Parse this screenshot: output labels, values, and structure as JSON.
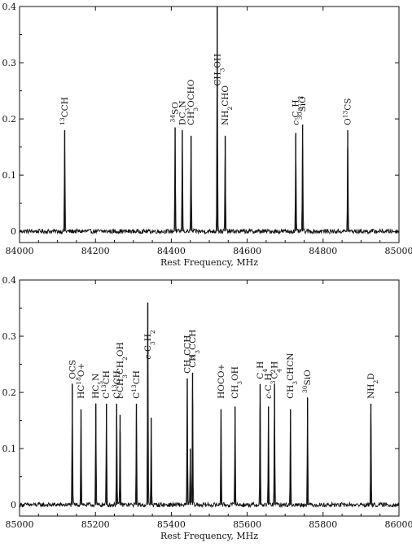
{
  "chart_data": [
    {
      "type": "line",
      "xlabel": "Rest Frequency, MHz",
      "ylabel": "",
      "xlim": [
        84000,
        85000
      ],
      "ylim": [
        -0.02,
        0.4
      ],
      "xticks": [
        "84000",
        "84200",
        "84400",
        "84600",
        "84800",
        "85000"
      ],
      "yticks": [
        "0",
        "0.1",
        "0.2",
        "0.3",
        "0.4"
      ],
      "grid": false,
      "noise_level": 0.004,
      "lines": [
        {
          "label": "<sup>13</sup>CCH",
          "x": 84119,
          "peak": 0.18
        },
        {
          "label": "<sup>34</sup>SO",
          "x": 84410,
          "peak": 0.185
        },
        {
          "label": "DC<sub>3</sub>N",
          "x": 84429,
          "peak": 0.18
        },
        {
          "label": "CH<sub>3</sub>OCHO",
          "x": 84452,
          "peak": 0.17
        },
        {
          "label": "CH<sub>3</sub>OH",
          "x": 84521,
          "peak": 0.4
        },
        {
          "label": "NH<sub>2</sub>CHO",
          "x": 84542,
          "peak": 0.17
        },
        {
          "label": "<i>c</i>-C<sub>3</sub>H<sub>2</sub>",
          "x": 84728,
          "peak": 0.175
        },
        {
          "label": "<sup>30</sup>SiO",
          "x": 84746,
          "peak": 0.19
        },
        {
          "label": "O<sup>13</sup>CS",
          "x": 84865,
          "peak": 0.18
        }
      ]
    },
    {
      "type": "line",
      "xlabel": "Rest Frequency, MHz",
      "ylabel": "",
      "xlim": [
        85000,
        86000
      ],
      "ylim": [
        -0.02,
        0.4
      ],
      "xticks": [
        "85000",
        "85200",
        "85400",
        "85600",
        "85800",
        "86000"
      ],
      "yticks": [
        "0",
        "0.1",
        "0.2",
        "0.3",
        "0.4"
      ],
      "grid": false,
      "noise_level": 0.004,
      "lines": [
        {
          "label": "OCS",
          "x": 85139,
          "peak": 0.215
        },
        {
          "label": "HC<sup>18</sup>O+",
          "x": 85162,
          "peak": 0.17
        },
        {
          "label": "HC<sub>5</sub>N",
          "x": 85201,
          "peak": 0.18
        },
        {
          "label": "C<sup>13</sup>CH",
          "x": 85229,
          "peak": 0.18
        },
        {
          "label": "C<sup>13</sup>CH",
          "x": 85256,
          "peak": 0.18
        },
        {
          "label": "<i>t</i>-CH<sub>3</sub>CH<sub>2</sub>OH",
          "x": 85265,
          "peak": 0.16
        },
        {
          "label": "C<sup>13</sup>CH",
          "x": 85308,
          "peak": 0.18
        },
        {
          "label": "<i>c</i>-C<sub>3</sub>H<sub>2</sub>",
          "x": 85338,
          "peak": 0.36
        },
        {
          "label": "",
          "x": 85347,
          "peak": 0.155
        },
        {
          "label": "CH<sub>3</sub>CCH",
          "x": 85442,
          "peak": 0.225
        },
        {
          "label": "",
          "x": 85450,
          "peak": 0.1
        },
        {
          "label": "CH<sub>3</sub>CCH",
          "x": 85456,
          "peak": 0.235
        },
        {
          "label": "HOCO+",
          "x": 85531,
          "peak": 0.17
        },
        {
          "label": "CH<sub>3</sub>OH",
          "x": 85568,
          "peak": 0.175
        },
        {
          "label": "C<sub>4</sub>H",
          "x": 85634,
          "peak": 0.215
        },
        {
          "label": "<i>c</i>-C<sub>3</sub>H<sub>2</sub>",
          "x": 85656,
          "peak": 0.175
        },
        {
          "label": "C<sub>4</sub>H",
          "x": 85672,
          "peak": 0.215
        },
        {
          "label": "CH<sub>3</sub>CHCN",
          "x": 85714,
          "peak": 0.17
        },
        {
          "label": "<sup>30</sup>SiO",
          "x": 85759,
          "peak": 0.19
        },
        {
          "label": "NH<sub>2</sub>D",
          "x": 85926,
          "peak": 0.18
        }
      ]
    }
  ]
}
